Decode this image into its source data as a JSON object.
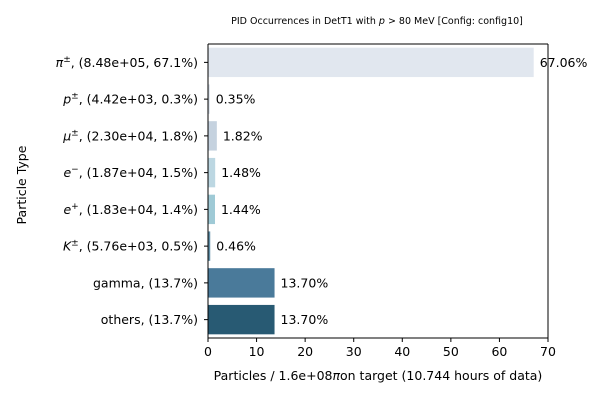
{
  "chart_data": {
    "type": "bar",
    "orientation": "horizontal",
    "title_parts": [
      "PID Occurrences in DetT1 with ",
      "p",
      " > 80 MeV [Config: config10]"
    ],
    "ylabel": "Particle Type",
    "xlabel_parts": [
      "Particles / 1.6e+08",
      "π",
      "on target (10.744 hours of data)"
    ],
    "xlim": [
      0,
      70
    ],
    "xticks": [
      0,
      10,
      20,
      30,
      40,
      50,
      60,
      70
    ],
    "grid": false,
    "categories": [
      {
        "sym": "π",
        "sup": "±",
        "rest": ", (8.48e+05, 67.1%)"
      },
      {
        "sym": "p",
        "sup": "±",
        "rest": ", (4.42e+03, 0.3%)"
      },
      {
        "sym": "μ",
        "sup": "±",
        "rest": ", (2.30e+04, 1.8%)"
      },
      {
        "sym": "e",
        "sup": "−",
        "rest": ", (1.87e+04, 1.5%)"
      },
      {
        "sym": "e",
        "sup": "+",
        "rest": ", (1.83e+04, 1.4%)"
      },
      {
        "sym": "K",
        "sup": "±",
        "rest": ", (5.76e+03, 0.5%)"
      },
      {
        "sym": "",
        "sup": "",
        "rest": "gamma, (13.7%)"
      },
      {
        "sym": "",
        "sup": "",
        "rest": "others, (13.7%)"
      }
    ],
    "values": [
      67.06,
      0.35,
      1.82,
      1.48,
      1.44,
      0.46,
      13.7,
      13.7
    ],
    "value_labels": [
      "67.06%",
      "0.35%",
      "1.82%",
      "1.48%",
      "1.44%",
      "0.46%",
      "13.70%",
      "13.70%"
    ],
    "colors": [
      "#e1e7ef",
      "#d6dee8",
      "#c5d2df",
      "#bcd7e2",
      "#9fcad6",
      "#5f8ea6",
      "#4a7a9a",
      "#285a73"
    ]
  }
}
